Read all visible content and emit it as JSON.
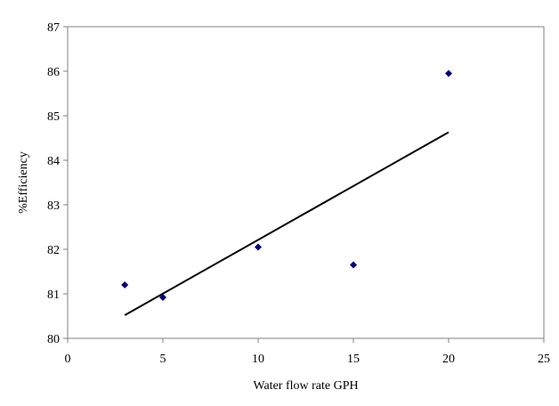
{
  "chart_data": {
    "type": "scatter",
    "title": "",
    "xlabel": "Water flow rate GPH",
    "ylabel": "%Efficiency",
    "xlim": [
      0,
      25
    ],
    "ylim": [
      80,
      87
    ],
    "xticks": [
      0,
      5,
      10,
      15,
      20,
      25
    ],
    "yticks": [
      80,
      81,
      82,
      83,
      84,
      85,
      86,
      87
    ],
    "grid": false,
    "legend": "none",
    "series": [
      {
        "x": [
          3,
          5,
          10,
          15,
          20
        ],
        "y": [
          81.2,
          80.92,
          82.05,
          81.65,
          85.95
        ],
        "marker": "diamond",
        "color": "#00007f"
      }
    ],
    "trendline": {
      "x": [
        3,
        20
      ],
      "y": [
        80.52,
        84.63
      ],
      "color": "#000000"
    }
  }
}
